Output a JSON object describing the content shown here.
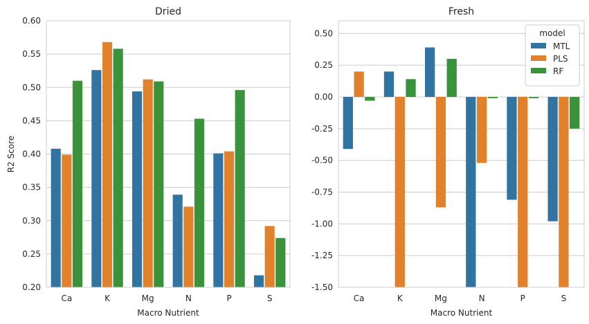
{
  "chart_data": [
    {
      "type": "bar",
      "title": "Dried",
      "xlabel": "Macro Nutrient",
      "ylabel": "R2 Score",
      "categories": [
        "Ca",
        "K",
        "Mg",
        "N",
        "P",
        "S"
      ],
      "ylim": [
        0.2,
        0.6
      ],
      "yticks": [
        "0.20",
        "0.25",
        "0.30",
        "0.35",
        "0.40",
        "0.45",
        "0.50",
        "0.55",
        "0.60"
      ],
      "grid": "horizontal",
      "legend": null,
      "series": [
        {
          "name": "MTL",
          "color": "#3274a1",
          "values": [
            0.408,
            0.526,
            0.494,
            0.339,
            0.401,
            0.218
          ]
        },
        {
          "name": "PLS",
          "color": "#e1812c",
          "values": [
            0.399,
            0.568,
            0.512,
            0.321,
            0.404,
            0.292
          ]
        },
        {
          "name": "RF",
          "color": "#3a923a",
          "values": [
            0.51,
            0.558,
            0.509,
            0.453,
            0.496,
            0.274
          ]
        }
      ]
    },
    {
      "type": "bar",
      "title": "Fresh",
      "xlabel": "Macro Nutrient",
      "ylabel": "",
      "categories": [
        "Ca",
        "K",
        "Mg",
        "N",
        "P",
        "S"
      ],
      "ylim": [
        -1.5,
        0.6
      ],
      "yticks": [
        "0.50",
        "0.25",
        "0.00",
        "-0.25",
        "-0.50",
        "-0.75",
        "-1.00",
        "-1.25",
        "-1.50"
      ],
      "grid": "horizontal",
      "legend": {
        "title": "model",
        "placement": "top-right",
        "entries": [
          "MTL",
          "PLS",
          "RF"
        ]
      },
      "series": [
        {
          "name": "MTL",
          "color": "#3274a1",
          "values": [
            -0.41,
            0.2,
            0.39,
            -1.5,
            -0.81,
            -0.98
          ]
        },
        {
          "name": "PLS",
          "color": "#e1812c",
          "values": [
            0.2,
            -1.5,
            -0.87,
            -0.52,
            -1.5,
            -1.5
          ]
        },
        {
          "name": "RF",
          "color": "#3a923a",
          "values": [
            -0.03,
            0.14,
            0.3,
            -0.01,
            -0.01,
            -0.25
          ]
        }
      ]
    }
  ]
}
